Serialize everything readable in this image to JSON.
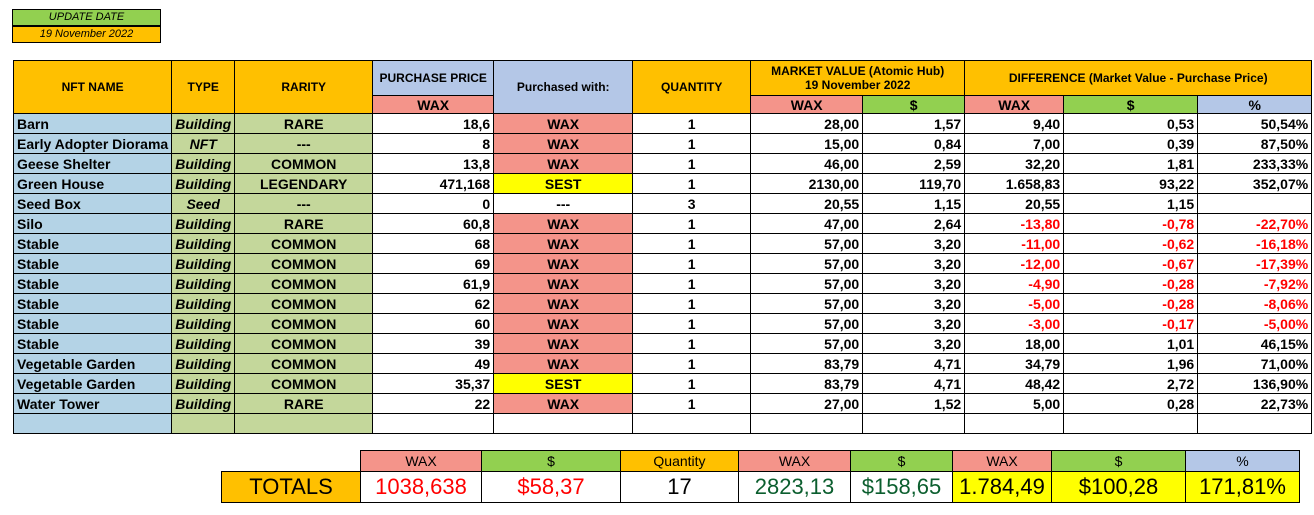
{
  "update": {
    "label": "UPDATE DATE",
    "date": "19 November 2022"
  },
  "headers": {
    "nft_name": "NFT NAME",
    "type": "TYPE",
    "rarity": "RARITY",
    "purchase_price": "PURCHASE PRICE",
    "purchase_wax": "WAX",
    "purchased_with": "Purchased with:",
    "quantity": "QUANTITY",
    "market_value": "MARKET VALUE  (Atomic Hub)",
    "market_date": "19 November 2022",
    "mv_wax": "WAX",
    "mv_usd": "$",
    "difference": "DIFFERENCE (Market Value - Purchase Price)",
    "diff_wax": "WAX",
    "diff_usd": "$",
    "diff_pct": "%"
  },
  "rows": [
    {
      "name": "Barn",
      "type": "Building",
      "rarity": "RARE",
      "price": "18,6",
      "with": "WAX",
      "qty": "1",
      "mv_wax": "28,00",
      "mv_usd": "1,57",
      "d_wax": "9,40",
      "d_usd": "0,53",
      "d_pct": "50,54%",
      "neg": false
    },
    {
      "name": "Early Adopter Diorama",
      "type": "NFT",
      "rarity": "---",
      "price": "8",
      "with": "WAX",
      "qty": "1",
      "mv_wax": "15,00",
      "mv_usd": "0,84",
      "d_wax": "7,00",
      "d_usd": "0,39",
      "d_pct": "87,50%",
      "neg": false
    },
    {
      "name": "Geese Shelter",
      "type": "Building",
      "rarity": "COMMON",
      "price": "13,8",
      "with": "WAX",
      "qty": "1",
      "mv_wax": "46,00",
      "mv_usd": "2,59",
      "d_wax": "32,20",
      "d_usd": "1,81",
      "d_pct": "233,33%",
      "neg": false
    },
    {
      "name": "Green House",
      "type": "Building",
      "rarity": "LEGENDARY",
      "price": "471,168",
      "with": "SEST",
      "qty": "1",
      "mv_wax": "2130,00",
      "mv_usd": "119,70",
      "d_wax": "1.658,83",
      "d_usd": "93,22",
      "d_pct": "352,07%",
      "neg": false
    },
    {
      "name": "Seed Box",
      "type": "Seed",
      "rarity": "---",
      "price": "0",
      "with": "---",
      "qty": "3",
      "mv_wax": "20,55",
      "mv_usd": "1,15",
      "d_wax": "20,55",
      "d_usd": "1,15",
      "d_pct": "",
      "neg": false
    },
    {
      "name": "Silo",
      "type": "Building",
      "rarity": "RARE",
      "price": "60,8",
      "with": "WAX",
      "qty": "1",
      "mv_wax": "47,00",
      "mv_usd": "2,64",
      "d_wax": "-13,80",
      "d_usd": "-0,78",
      "d_pct": "-22,70%",
      "neg": true
    },
    {
      "name": "Stable",
      "type": "Building",
      "rarity": "COMMON",
      "price": "68",
      "with": "WAX",
      "qty": "1",
      "mv_wax": "57,00",
      "mv_usd": "3,20",
      "d_wax": "-11,00",
      "d_usd": "-0,62",
      "d_pct": "-16,18%",
      "neg": true
    },
    {
      "name": "Stable",
      "type": "Building",
      "rarity": "COMMON",
      "price": "69",
      "with": "WAX",
      "qty": "1",
      "mv_wax": "57,00",
      "mv_usd": "3,20",
      "d_wax": "-12,00",
      "d_usd": "-0,67",
      "d_pct": "-17,39%",
      "neg": true
    },
    {
      "name": "Stable",
      "type": "Building",
      "rarity": "COMMON",
      "price": "61,9",
      "with": "WAX",
      "qty": "1",
      "mv_wax": "57,00",
      "mv_usd": "3,20",
      "d_wax": "-4,90",
      "d_usd": "-0,28",
      "d_pct": "-7,92%",
      "neg": true
    },
    {
      "name": "Stable",
      "type": "Building",
      "rarity": "COMMON",
      "price": "62",
      "with": "WAX",
      "qty": "1",
      "mv_wax": "57,00",
      "mv_usd": "3,20",
      "d_wax": "-5,00",
      "d_usd": "-0,28",
      "d_pct": "-8,06%",
      "neg": true
    },
    {
      "name": "Stable",
      "type": "Building",
      "rarity": "COMMON",
      "price": "60",
      "with": "WAX",
      "qty": "1",
      "mv_wax": "57,00",
      "mv_usd": "3,20",
      "d_wax": "-3,00",
      "d_usd": "-0,17",
      "d_pct": "-5,00%",
      "neg": true
    },
    {
      "name": "Stable",
      "type": "Building",
      "rarity": "COMMON",
      "price": "39",
      "with": "WAX",
      "qty": "1",
      "mv_wax": "57,00",
      "mv_usd": "3,20",
      "d_wax": "18,00",
      "d_usd": "1,01",
      "d_pct": "46,15%",
      "neg": false
    },
    {
      "name": "Vegetable Garden",
      "type": "Building",
      "rarity": "COMMON",
      "price": "49",
      "with": "WAX",
      "qty": "1",
      "mv_wax": "83,79",
      "mv_usd": "4,71",
      "d_wax": "34,79",
      "d_usd": "1,96",
      "d_pct": "71,00%",
      "neg": false
    },
    {
      "name": "Vegetable Garden",
      "type": "Building",
      "rarity": "COMMON",
      "price": "35,37",
      "with": "SEST",
      "qty": "1",
      "mv_wax": "83,79",
      "mv_usd": "4,71",
      "d_wax": "48,42",
      "d_usd": "2,72",
      "d_pct": "136,90%",
      "neg": false
    },
    {
      "name": "Water Tower",
      "type": "Building",
      "rarity": "RARE",
      "price": "22",
      "with": "WAX",
      "qty": "1",
      "mv_wax": "27,00",
      "mv_usd": "1,52",
      "d_wax": "5,00",
      "d_usd": "0,28",
      "d_pct": "22,73%",
      "neg": false
    }
  ],
  "totals": {
    "label": "TOTALS",
    "headers": [
      "WAX",
      "$",
      "Quantity",
      "WAX",
      "$",
      "WAX",
      "$",
      "%"
    ],
    "values": [
      "1038,638",
      "$58,37",
      "17",
      "2823,13",
      "$158,65",
      "1.784,49",
      "$100,28",
      "171,81%"
    ]
  },
  "colors": {
    "orange": "#ffc000",
    "green": "#92d050",
    "salmon": "#f4948a",
    "yellow": "#ffff00",
    "light_blue": "#b4d3e6",
    "olive": "#c4d79b",
    "negative": "#ff0000"
  }
}
